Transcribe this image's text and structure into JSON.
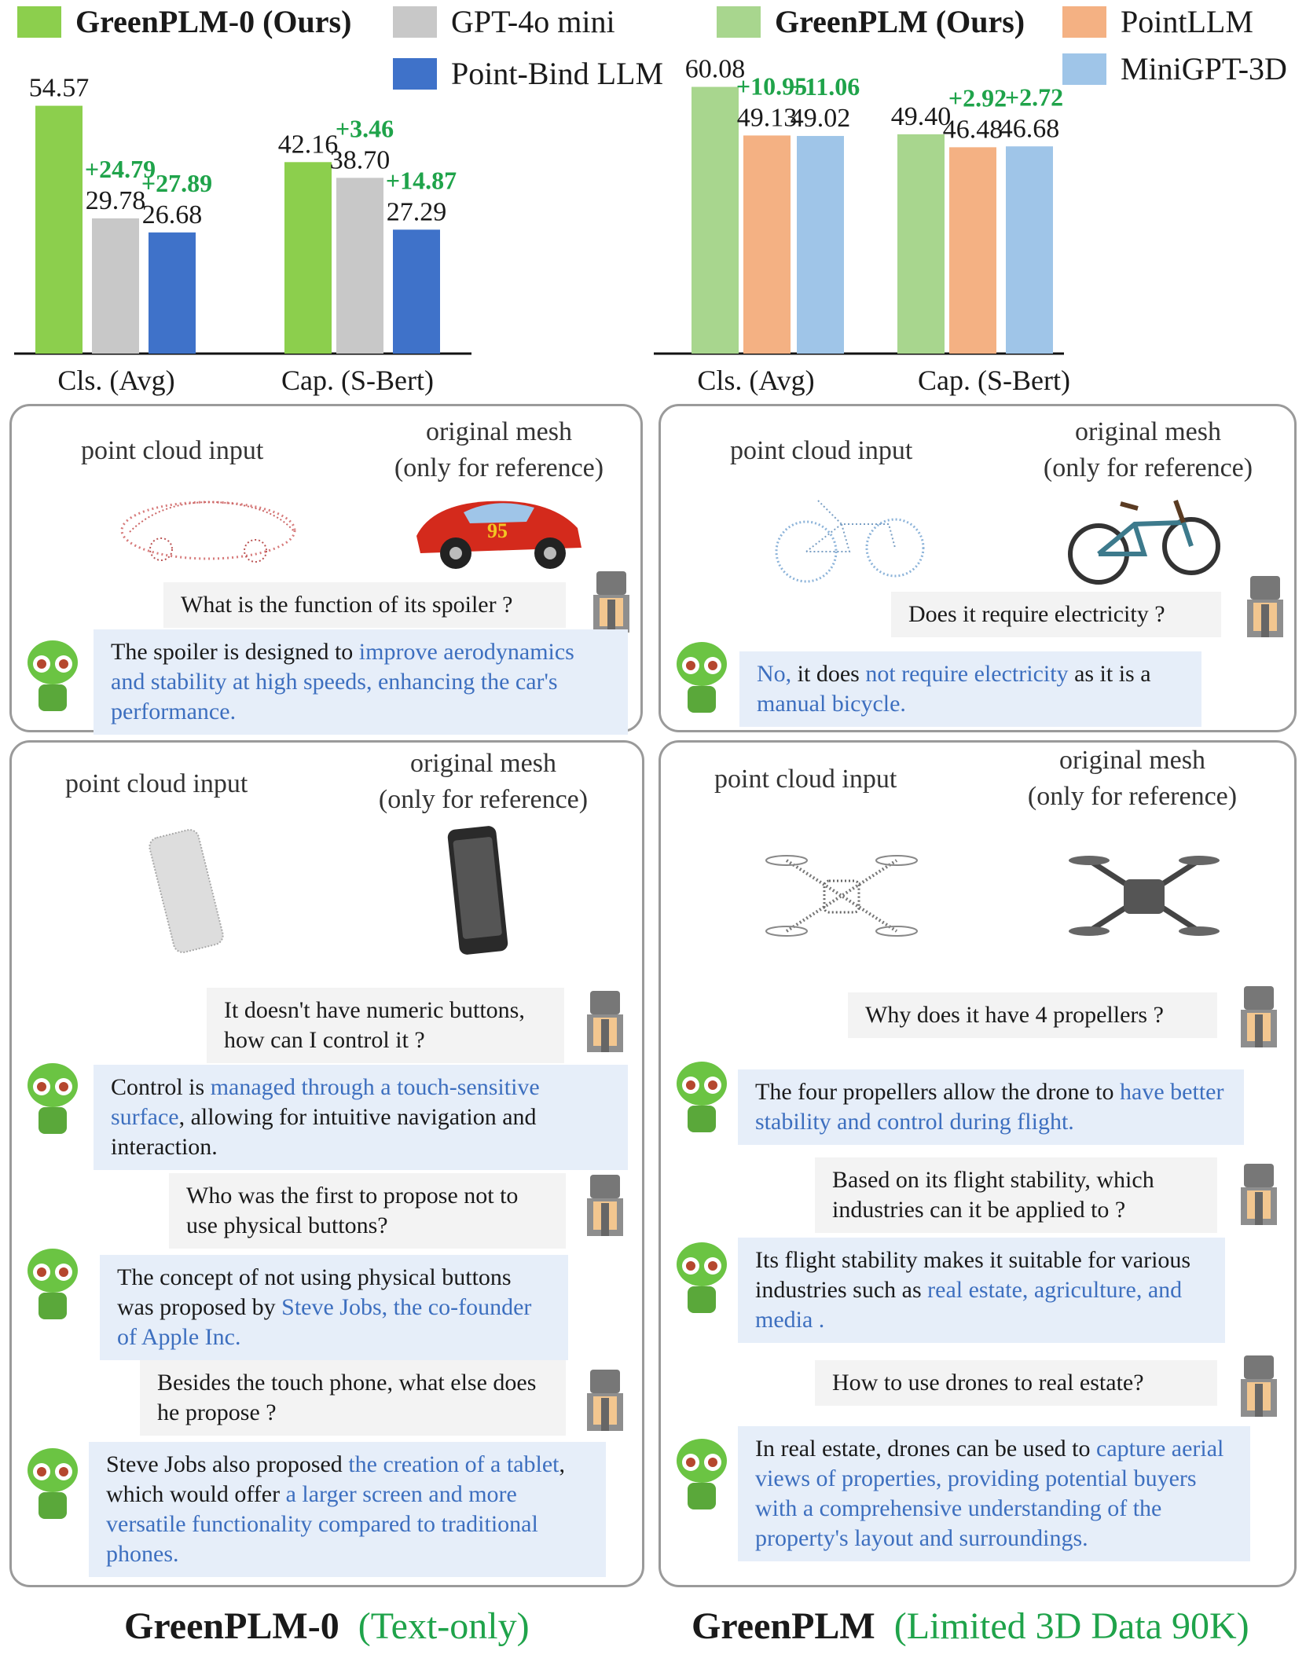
{
  "colors": {
    "greenplm0": "#8ccf4d",
    "gpt4omini": "#c8c8c8",
    "pointbind": "#3f72c9",
    "greenplm": "#a8d68e",
    "pointllm": "#f4b183",
    "minigpt3d": "#9fc5e8",
    "delta_text": "#1fa34a",
    "highlight": "#3d6fbf"
  },
  "chart_data": [
    {
      "type": "bar",
      "categories": [
        "Cls. (Avg)",
        "Cap. (S-Bert)"
      ],
      "series": [
        {
          "name": "GreenPLM-0 (Ours)",
          "values": [
            54.57,
            42.16
          ]
        },
        {
          "name": "GPT-4o mini",
          "values": [
            29.78,
            38.7
          ]
        },
        {
          "name": "Point-Bind LLM",
          "values": [
            26.68,
            27.29
          ]
        }
      ],
      "value_labels": [
        [
          "54.57",
          "42.16"
        ],
        [
          "29.78",
          "38.70"
        ],
        [
          "26.68",
          "27.29"
        ]
      ],
      "deltas": [
        [
          null,
          null
        ],
        [
          "+24.79",
          "+3.46"
        ],
        [
          "+27.89",
          "+14.87"
        ]
      ],
      "legend_position": "top"
    },
    {
      "type": "bar",
      "categories": [
        "Cls. (Avg)",
        "Cap. (S-Bert)"
      ],
      "series": [
        {
          "name": "GreenPLM (Ours)",
          "values": [
            60.08,
            49.4
          ]
        },
        {
          "name": "PointLLM",
          "values": [
            49.13,
            46.48
          ]
        },
        {
          "name": "MiniGPT-3D",
          "values": [
            49.02,
            46.68
          ]
        }
      ],
      "value_labels": [
        [
          "60.08",
          "49.40"
        ],
        [
          "49.13",
          "46.48"
        ],
        [
          "49.02",
          "46.68"
        ]
      ],
      "deltas": [
        [
          null,
          null
        ],
        [
          "+10.95",
          "+2.92"
        ],
        [
          "+11.06",
          "+2.72"
        ]
      ],
      "legend_position": "top"
    }
  ],
  "panels": {
    "car": {
      "input_label": "point cloud input",
      "mesh_label_1": "original mesh",
      "mesh_label_2": "(only for reference)",
      "q1": "What is the function of its spoiler ?",
      "a1_pre": "The spoiler is designed to ",
      "a1_hl": "improve aerodynamics and stability at high speeds, enhancing the car's performance."
    },
    "bicycle": {
      "input_label": "point cloud input",
      "mesh_label_1": "original mesh",
      "mesh_label_2": "(only for reference)",
      "q1": "Does it require electricity ?",
      "a1_hl1": "No,",
      "a1_mid": " it does ",
      "a1_hl2": "not require electricity",
      "a1_post": " as it is a ",
      "a1_hl3": "manual bicycle."
    },
    "phone": {
      "input_label": "point cloud input",
      "mesh_label_1": "original mesh",
      "mesh_label_2": "(only for reference)",
      "q1": "It doesn't have numeric buttons, how can I control it ?",
      "a1_pre": "Control is ",
      "a1_hl": "managed through a touch-sensitive surface",
      "a1_post": ", allowing for intuitive navigation and interaction.",
      "q2": "Who was the first to propose not to use physical buttons?",
      "a2_pre": "The concept of not using physical buttons was proposed by ",
      "a2_hl": "Steve Jobs, the co-founder of Apple Inc.",
      "q3": "Besides the touch phone, what else does  he propose ?",
      "a3_pre": "Steve Jobs also proposed ",
      "a3_hl1": "the creation of a tablet",
      "a3_mid": ", which would offer ",
      "a3_hl2": "a larger screen and more versatile functionality compared to traditional phones."
    },
    "drone": {
      "input_label": "point cloud input",
      "mesh_label_1": "original mesh",
      "mesh_label_2": "(only for reference)",
      "q1": "Why does it have 4 propellers ?",
      "a1_pre": "The four propellers allow the drone to ",
      "a1_hl": "have better stability and control during flight.",
      "q2": "Based on its flight stability, which industries can it be applied to ?",
      "a2_pre": "Its flight stability makes it suitable for various industries such as ",
      "a2_hl": "real estate, agriculture, and media .",
      "q3": "How to use drones to real estate?",
      "a3_pre": "In real estate, drones can be used to ",
      "a3_hl": "capture aerial views of properties, providing potential buyers with a comprehensive understanding of the property's layout and surroundings."
    }
  },
  "footer": {
    "left_title": "GreenPLM-0",
    "left_sub": "(Text-only)",
    "right_title": "GreenPLM",
    "right_sub": "(Limited 3D Data 90K)"
  }
}
